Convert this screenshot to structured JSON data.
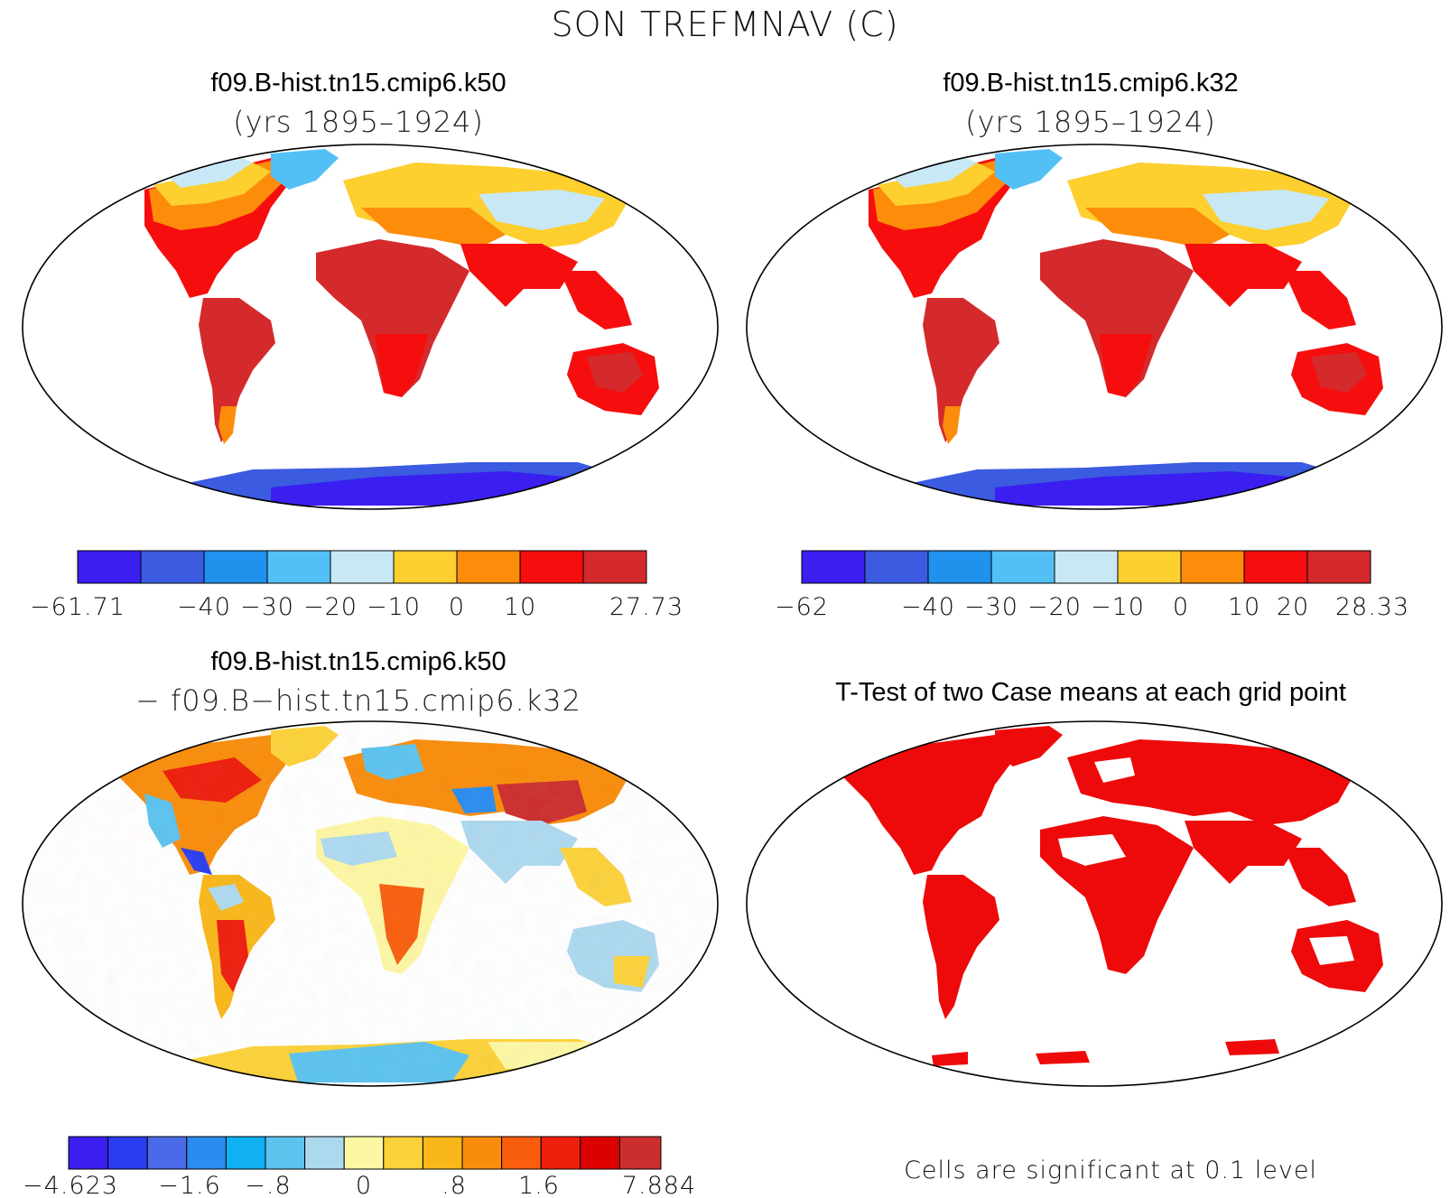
{
  "figure_title": "SON TREFMNAV (C)",
  "panels": [
    {
      "id": "case1",
      "title": "f09.B-hist.tn15.cmip6.k50",
      "subtitle": "(yrs 1895–1924)",
      "colorbar": {
        "colors": [
          "#3a1ff0",
          "#3b5be0",
          "#2191ee",
          "#53c0f5",
          "#c8e8f6",
          "#fdcf2f",
          "#fc8c0a",
          "#f60e0e",
          "#d42a2c"
        ],
        "tick_labels": [
          "−61.71",
          "−40",
          "−30",
          "−20",
          "−10",
          "0",
          "10",
          "27.73"
        ]
      }
    },
    {
      "id": "case2",
      "title": "f09.B-hist.tn15.cmip6.k32",
      "subtitle": "(yrs 1895–1924)",
      "colorbar": {
        "colors": [
          "#3a1ff0",
          "#3b5be0",
          "#2191ee",
          "#53c0f5",
          "#c8e8f6",
          "#fdcf2f",
          "#fc8c0a",
          "#f60e0e",
          "#d42a2c"
        ],
        "tick_labels": [
          "−62",
          "−40",
          "−30",
          "−20",
          "−10",
          "0",
          "10",
          "20",
          "28.33"
        ]
      }
    },
    {
      "id": "diff",
      "title": "f09.B-hist.tn15.cmip6.k50",
      "subtitle": "− f09.B−hist.tn15.cmip6.k32",
      "colorbar": {
        "colors": [
          "#3a1ff0",
          "#2a3df0",
          "#4a6ae8",
          "#2b8cf0",
          "#0fb1f2",
          "#5cc3ef",
          "#add9ef",
          "#fdf7a4",
          "#fcd23a",
          "#f9b71a",
          "#f98d0b",
          "#f85e0e",
          "#ee1e0d",
          "#dc0000",
          "#cc2e2d"
        ],
        "tick_labels": [
          "−4.623",
          "−1.6",
          "−.8",
          "0",
          ".8",
          "1.6",
          "7.884"
        ]
      }
    },
    {
      "id": "ttest",
      "title": "T-Test of two Case means at each grid point",
      "footnote": "Cells are significant at 0.1 level",
      "significant_color": "#ee0a0a"
    }
  ]
}
